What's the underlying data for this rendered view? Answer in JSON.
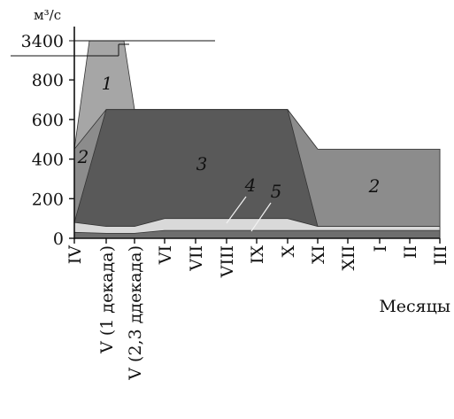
{
  "chart_data": {
    "type": "area",
    "title": "",
    "ylabel": "м³/с",
    "xlabel": "Месяцы",
    "y_break_note": "axis break between 800 and 3400",
    "y_ticks": [
      "0",
      "200",
      "400",
      "600",
      "800",
      "3400"
    ],
    "categories": [
      "IV",
      "V (1 декада)",
      "V (2,3 ддекада)",
      "VI",
      "VII",
      "VIII",
      "IX",
      "X",
      "XI",
      "XII",
      "I",
      "II",
      "III"
    ],
    "series": [
      {
        "name": "1",
        "fill": "#a6a6a6",
        "label_at": "V (1 декада)",
        "values": [
          450,
          3400,
          3400,
          650,
          650,
          650,
          650,
          650,
          450,
          450,
          450,
          450,
          450
        ]
      },
      {
        "name": "2",
        "fill": "#8c8c8c",
        "label_at": "XII",
        "values": [
          450,
          650,
          650,
          650,
          650,
          650,
          650,
          650,
          450,
          450,
          450,
          450,
          450
        ]
      },
      {
        "name": "3",
        "fill": "#595959",
        "label_at": "VII",
        "values": [
          80,
          650,
          650,
          650,
          650,
          650,
          650,
          650,
          60,
          60,
          60,
          60,
          60
        ]
      },
      {
        "name": "4",
        "fill": "#d9d9d9",
        "label_at": "VIII",
        "values": [
          80,
          60,
          60,
          100,
          100,
          100,
          100,
          100,
          60,
          60,
          60,
          60,
          60
        ]
      },
      {
        "name": "5",
        "fill": "#6e6e6e",
        "label_at": "IX",
        "values": [
          30,
          25,
          25,
          40,
          40,
          40,
          40,
          40,
          40,
          40,
          40,
          40,
          40
        ]
      }
    ],
    "colors": {
      "axis": "#111111",
      "outline": "#333333"
    }
  }
}
